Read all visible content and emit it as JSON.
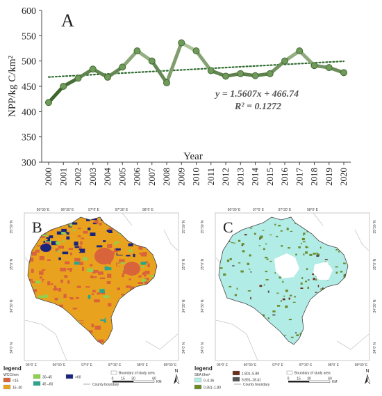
{
  "chart_data": [
    {
      "type": "line",
      "panel_label": "A",
      "title": "",
      "xlabel": "Year",
      "ylabel": "NPP/kg C/km²",
      "ylim": [
        300,
        600
      ],
      "yticks": [
        300,
        350,
        400,
        450,
        500,
        550,
        600
      ],
      "grid": false,
      "x": [
        "2000",
        "2001",
        "2002",
        "2003",
        "2004",
        "2005",
        "2006",
        "2007",
        "2008",
        "2009",
        "2010",
        "2011",
        "2012",
        "2013",
        "2014",
        "2015",
        "2016",
        "2017",
        "2018",
        "2019",
        "2020"
      ],
      "series": [
        {
          "values": [
            418,
            450,
            466,
            484,
            468,
            488,
            520,
            500,
            457,
            536,
            520,
            481,
            470,
            475,
            471,
            475,
            500,
            520,
            491,
            487,
            477
          ],
          "color": "#4a7a3a"
        }
      ],
      "trendline": {
        "slope": 1.5607,
        "intercept": 466.74,
        "style": "dotted",
        "color": "#2e6b2e"
      },
      "annotations": {
        "equation": "y = 1.5607x + 466.74",
        "r2": "R² = 0.1272"
      }
    }
  ],
  "map_b": {
    "panel_label": "B",
    "top_ticks": [
      "96°30′ E",
      "96°30′ E",
      "97°0′ E",
      "97°30′ E",
      "98°0′ E"
    ],
    "bottom_ticks": [
      "96°0′ E",
      "96°30′ E",
      "97°0′ E",
      "97°30′ E",
      "98°0′ E",
      "98°30′ E"
    ],
    "left_ticks": [
      "35°30′ N",
      "35°0′ N",
      "34°30′ N",
      "34°0′ N"
    ],
    "right_ticks": [
      "35°30′ N",
      "35°0′ N",
      "34°30′ N",
      "34°0′ N"
    ],
    "legend": {
      "title": "legend",
      "subtitle": "WCC/mm",
      "items": [
        {
          "label": "<15",
          "color": "#d9633a"
        },
        {
          "label": "15–30",
          "color": "#e8a21e"
        },
        {
          "label": "30–45",
          "color": "#8fd14f"
        },
        {
          "label": "45 –60",
          "color": "#2ca58d"
        },
        {
          "label": ">60",
          "color": "#1a237e"
        }
      ],
      "boundary_study": "Boundary of study area",
      "boundary_county": "County boundary",
      "scale_ticks": [
        "0",
        "15",
        "30",
        "60"
      ],
      "scale_unit": "KM",
      "north": "N"
    }
  },
  "map_c": {
    "panel_label": "C",
    "top_ticks": [
      "96°30′ E",
      "97°0′ E",
      "97°30′ E",
      "98°0′ E"
    ],
    "bottom_ticks": [
      "96°0′ E",
      "96°30′ E",
      "97°0′ E",
      "97°30′ E",
      "98°0′ E",
      "98°30′ E"
    ],
    "left_ticks": [
      "35°30′ N",
      "35°0′ N",
      "34°30′ N",
      "34°0′ N"
    ],
    "right_ticks": [
      "35°30′ N",
      "35°0′ N",
      "34°30′ N",
      "34°0′ N"
    ],
    "legend": {
      "title": "legend",
      "subtitle": "SEA t/hm²",
      "items": [
        {
          "label": "0–0.36",
          "color": "#b2ece6"
        },
        {
          "label": "0.361–1.80",
          "color": "#6a8a2a"
        },
        {
          "label": "1.801–5.89",
          "color": "#6b2e1a"
        },
        {
          "label": "5.891–18.41",
          "color": "#555555"
        }
      ],
      "boundary_study": "Boundary of study area",
      "boundary_county": "County boundary",
      "scale_ticks": [
        "0",
        "15",
        "30",
        "60"
      ],
      "scale_unit": "KM",
      "north": "N"
    }
  }
}
